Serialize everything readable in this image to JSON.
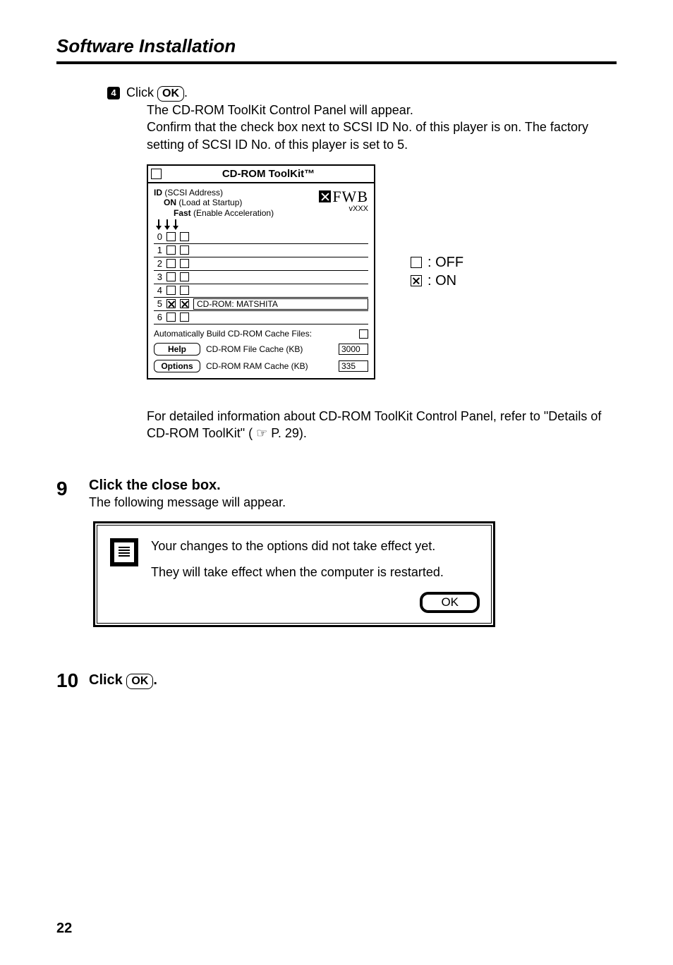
{
  "header": {
    "title": "Software Installation"
  },
  "step4": {
    "bullet": "4",
    "prefix": "Click",
    "button": "OK",
    "suffix": ".",
    "para": "The CD-ROM ToolKit Control Panel will appear.\nConfirm that the check box next to SCSI ID No. of this player is on. The factory setting of SCSI ID No. of this player is set to 5."
  },
  "panel": {
    "title": "CD-ROM ToolKit™",
    "id_label": "ID",
    "id_sub": "(SCSI Address)",
    "on_label": "ON",
    "on_sub": "(Load at Startup)",
    "fast_label": "Fast",
    "fast_sub": "(Enable Acceleration)",
    "logo": "FWB",
    "version": "vXXX",
    "rows": [
      {
        "num": "0",
        "c1": false,
        "c2": false,
        "dev": ""
      },
      {
        "num": "1",
        "c1": false,
        "c2": false,
        "dev": ""
      },
      {
        "num": "2",
        "c1": false,
        "c2": false,
        "dev": ""
      },
      {
        "num": "3",
        "c1": false,
        "c2": false,
        "dev": ""
      },
      {
        "num": "4",
        "c1": false,
        "c2": false,
        "dev": ""
      },
      {
        "num": "5",
        "c1": true,
        "c2": true,
        "dev": "CD-ROM: MATSHITA"
      },
      {
        "num": "6",
        "c1": false,
        "c2": false,
        "dev": ""
      }
    ],
    "auto_label": "Automatically Build CD-ROM Cache Files:",
    "auto_checked": false,
    "help_btn": "Help",
    "options_btn": "Options",
    "file_cache_label": "CD-ROM File Cache (KB)",
    "file_cache_val": "3000",
    "ram_cache_label": "CD-ROM RAM Cache (KB)",
    "ram_cache_val": "335"
  },
  "legend": {
    "off": ": OFF",
    "on": ": ON"
  },
  "detail_para": "For detailed information about CD-ROM ToolKit Control Panel, refer to \"Details of CD-ROM ToolKit\" ( ☞ P. 29).",
  "step9": {
    "num": "9",
    "title": "Click the close box.",
    "sub": "The following message will appear."
  },
  "dialog": {
    "line1": "Your changes to the options did not take effect yet.",
    "line2": "They will take effect when the computer is restarted.",
    "ok": "OK"
  },
  "step10": {
    "num": "10",
    "prefix": "Click",
    "button": "OK",
    "suffix": "."
  },
  "page_number": "22"
}
